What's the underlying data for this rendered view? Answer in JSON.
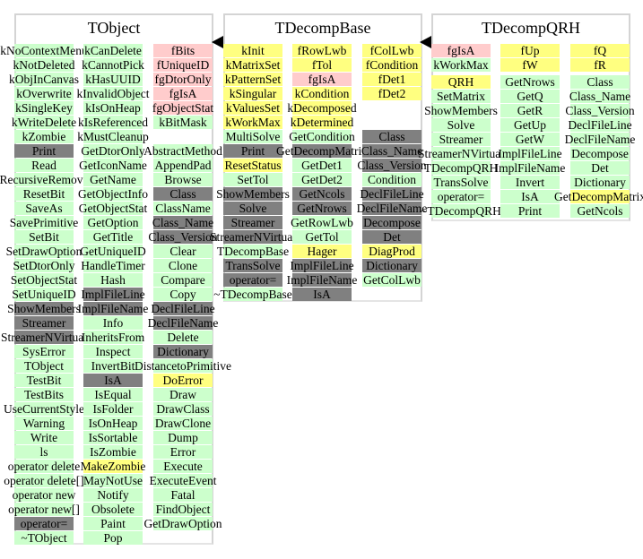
{
  "colors": {
    "method": "#ccffcc",
    "static_member": "#ffcccc",
    "own_member": "#ffff80",
    "inherited_or_dict": "#808080"
  },
  "classes": [
    {
      "title": "TObject",
      "columns": [
        [
          [
            "kNoContextMenu",
            "g"
          ],
          [
            "kNotDeleted",
            "g"
          ],
          [
            "kObjInCanvas",
            "g"
          ],
          [
            "kOverwrite",
            "g"
          ],
          [
            "kSingleKey",
            "g"
          ],
          [
            "kWriteDelete",
            "g"
          ],
          [
            "kZombie",
            "g"
          ],
          [
            "Print",
            "d"
          ],
          [
            "Read",
            "g"
          ],
          [
            "RecursiveRemove",
            "g"
          ],
          [
            "ResetBit",
            "g"
          ],
          [
            "SaveAs",
            "g"
          ],
          [
            "SavePrimitive",
            "g"
          ],
          [
            "SetBit",
            "g"
          ],
          [
            "SetDrawOption",
            "g"
          ],
          [
            "SetDtorOnly",
            "g"
          ],
          [
            "SetObjectStat",
            "g"
          ],
          [
            "SetUniqueID",
            "g"
          ],
          [
            "ShowMembers",
            "d"
          ],
          [
            "Streamer",
            "d"
          ],
          [
            "StreamerNVirtual",
            "d"
          ],
          [
            "SysError",
            "g"
          ],
          [
            "TObject",
            "g"
          ],
          [
            "TestBit",
            "g"
          ],
          [
            "TestBits",
            "g"
          ],
          [
            "UseCurrentStyle",
            "g"
          ],
          [
            "Warning",
            "g"
          ],
          [
            "Write",
            "g"
          ],
          [
            "ls",
            "g"
          ],
          [
            "operator delete",
            "g"
          ],
          [
            "operator delete[]",
            "g"
          ],
          [
            "operator new",
            "g"
          ],
          [
            "operator new[]",
            "g"
          ],
          [
            "operator=",
            "d"
          ],
          [
            "~TObject",
            "g"
          ]
        ],
        [
          [
            "kCanDelete",
            "g"
          ],
          [
            "kCannotPick",
            "g"
          ],
          [
            "kHasUUID",
            "g"
          ],
          [
            "kInvalidObject",
            "g"
          ],
          [
            "kIsOnHeap",
            "g"
          ],
          [
            "kIsReferenced",
            "g"
          ],
          [
            "kMustCleanup",
            "g"
          ],
          [
            "GetDtorOnly",
            "g"
          ],
          [
            "GetIconName",
            "g"
          ],
          [
            "GetName",
            "g"
          ],
          [
            "GetObjectInfo",
            "g"
          ],
          [
            "GetObjectStat",
            "g"
          ],
          [
            "GetOption",
            "g"
          ],
          [
            "GetTitle",
            "g"
          ],
          [
            "GetUniqueID",
            "g"
          ],
          [
            "HandleTimer",
            "g"
          ],
          [
            "Hash",
            "g"
          ],
          [
            "ImplFileLine",
            "d"
          ],
          [
            "ImplFileName",
            "d"
          ],
          [
            "Info",
            "g"
          ],
          [
            "InheritsFrom",
            "g"
          ],
          [
            "Inspect",
            "g"
          ],
          [
            "InvertBit",
            "g"
          ],
          [
            "IsA",
            "d"
          ],
          [
            "IsEqual",
            "g"
          ],
          [
            "IsFolder",
            "g"
          ],
          [
            "IsOnHeap",
            "g"
          ],
          [
            "IsSortable",
            "g"
          ],
          [
            "IsZombie",
            "g"
          ],
          [
            "MakeZombie",
            "y"
          ],
          [
            "MayNotUse",
            "g"
          ],
          [
            "Notify",
            "g"
          ],
          [
            "Obsolete",
            "g"
          ],
          [
            "Paint",
            "g"
          ],
          [
            "Pop",
            "g"
          ]
        ],
        [
          [
            "fBits",
            "p"
          ],
          [
            "fUniqueID",
            "p"
          ],
          [
            "fgDtorOnly",
            "p"
          ],
          [
            "fgIsA",
            "p"
          ],
          [
            "fgObjectStat",
            "p"
          ],
          [
            "kBitMask",
            "g"
          ],
          null,
          [
            "AbstractMethod",
            "g"
          ],
          [
            "AppendPad",
            "g"
          ],
          [
            "Browse",
            "g"
          ],
          [
            "Class",
            "d"
          ],
          [
            "ClassName",
            "g"
          ],
          [
            "Class_Name",
            "d"
          ],
          [
            "Class_Version",
            "d"
          ],
          [
            "Clear",
            "g"
          ],
          [
            "Clone",
            "g"
          ],
          [
            "Compare",
            "g"
          ],
          [
            "Copy",
            "g"
          ],
          [
            "DeclFileLine",
            "d"
          ],
          [
            "DeclFileName",
            "d"
          ],
          [
            "Delete",
            "g"
          ],
          [
            "Dictionary",
            "d"
          ],
          [
            "DistancetoPrimitive",
            "g"
          ],
          [
            "DoError",
            "y"
          ],
          [
            "Draw",
            "g"
          ],
          [
            "DrawClass",
            "g"
          ],
          [
            "DrawClone",
            "g"
          ],
          [
            "Dump",
            "g"
          ],
          [
            "Error",
            "g"
          ],
          [
            "Execute",
            "g"
          ],
          [
            "ExecuteEvent",
            "g"
          ],
          [
            "Fatal",
            "g"
          ],
          [
            "FindObject",
            "g"
          ],
          [
            "GetDrawOption",
            "g"
          ]
        ]
      ]
    },
    {
      "title": "TDecompBase",
      "columns": [
        [
          [
            "kInit",
            "y"
          ],
          [
            "kMatrixSet",
            "y"
          ],
          [
            "kPatternSet",
            "y"
          ],
          [
            "kSingular",
            "y"
          ],
          [
            "kValuesSet",
            "y"
          ],
          [
            "kWorkMax",
            "y"
          ],
          [
            "MultiSolve",
            "g"
          ],
          [
            "Print",
            "d"
          ],
          [
            "ResetStatus",
            "y"
          ],
          [
            "SetTol",
            "g"
          ],
          [
            "ShowMembers",
            "d"
          ],
          [
            "Solve",
            "d"
          ],
          [
            "Streamer",
            "d"
          ],
          [
            "StreamerNVirtual",
            "d"
          ],
          [
            "TDecompBase",
            "g"
          ],
          [
            "TransSolve",
            "d"
          ],
          [
            "operator=",
            "d"
          ],
          [
            "~TDecompBase",
            "g"
          ]
        ],
        [
          [
            "fRowLwb",
            "y"
          ],
          [
            "fTol",
            "y"
          ],
          [
            "fgIsA",
            "p"
          ],
          [
            "kCondition",
            "y"
          ],
          [
            "kDecomposed",
            "y"
          ],
          [
            "kDetermined",
            "y"
          ],
          [
            "GetCondition",
            "g"
          ],
          [
            "GetDecompMatrix",
            "d"
          ],
          [
            "GetDet1",
            "g"
          ],
          [
            "GetDet2",
            "g"
          ],
          [
            "GetNcols",
            "d"
          ],
          [
            "GetNrows",
            "d"
          ],
          [
            "GetRowLwb",
            "g"
          ],
          [
            "GetTol",
            "g"
          ],
          [
            "Hager",
            "y"
          ],
          [
            "ImplFileLine",
            "d"
          ],
          [
            "ImplFileName",
            "d"
          ],
          [
            "IsA",
            "d"
          ]
        ],
        [
          [
            "fColLwb",
            "y"
          ],
          [
            "fCondition",
            "y"
          ],
          [
            "fDet1",
            "y"
          ],
          [
            "fDet2",
            "y"
          ],
          null,
          null,
          [
            "Class",
            "d"
          ],
          [
            "Class_Name",
            "d"
          ],
          [
            "Class_Version",
            "d"
          ],
          [
            "Condition",
            "g"
          ],
          [
            "DeclFileLine",
            "d"
          ],
          [
            "DeclFileName",
            "d"
          ],
          [
            "Decompose",
            "d"
          ],
          [
            "Det",
            "d"
          ],
          [
            "DiagProd",
            "y"
          ],
          [
            "Dictionary",
            "d"
          ],
          [
            "GetColLwb",
            "g"
          ]
        ]
      ]
    },
    {
      "title": "TDecompQRH",
      "columns": [
        [
          [
            "fgIsA",
            "p"
          ],
          [
            "kWorkMax",
            "g"
          ],
          [
            "QRH",
            "y"
          ],
          [
            "SetMatrix",
            "g"
          ],
          [
            "ShowMembers",
            "g"
          ],
          [
            "Solve",
            "g"
          ],
          [
            "Streamer",
            "g"
          ],
          [
            "StreamerNVirtual",
            "g"
          ],
          [
            "TDecompQRH",
            "g"
          ],
          [
            "TransSolve",
            "g"
          ],
          [
            "operator=",
            "g"
          ],
          [
            "~TDecompQRH",
            "g"
          ]
        ],
        [
          [
            "fUp",
            "y"
          ],
          [
            "fW",
            "y"
          ],
          [
            "GetNrows",
            "g"
          ],
          [
            "GetQ",
            "g"
          ],
          [
            "GetR",
            "g"
          ],
          [
            "GetUp",
            "g"
          ],
          [
            "GetW",
            "g"
          ],
          [
            "ImplFileLine",
            "g"
          ],
          [
            "ImplFileName",
            "g"
          ],
          [
            "Invert",
            "g"
          ],
          [
            "IsA",
            "g"
          ],
          [
            "Print",
            "g"
          ]
        ],
        [
          [
            "fQ",
            "y"
          ],
          [
            "fR",
            "y"
          ],
          [
            "Class",
            "g"
          ],
          [
            "Class_Name",
            "g"
          ],
          [
            "Class_Version",
            "g"
          ],
          [
            "DeclFileLine",
            "g"
          ],
          [
            "DeclFileName",
            "g"
          ],
          [
            "Decompose",
            "g"
          ],
          [
            "Det",
            "g"
          ],
          [
            "Dictionary",
            "g"
          ],
          [
            "GetDecompMatrix",
            "y"
          ],
          [
            "GetNcols",
            "g"
          ]
        ]
      ]
    }
  ]
}
